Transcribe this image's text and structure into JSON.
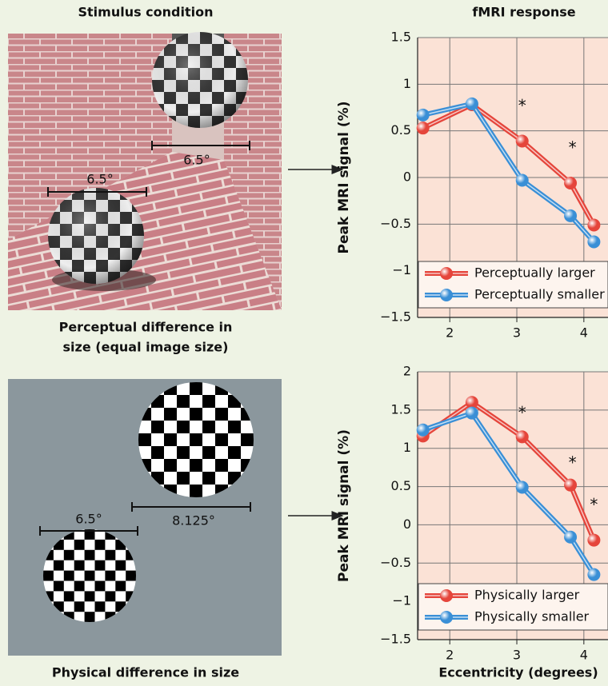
{
  "titles": {
    "left": "Stimulus condition",
    "right": "fMRI response"
  },
  "stimuli": [
    {
      "caption": [
        "Perceptual difference in",
        "size (equal image size)"
      ],
      "dims": [
        "6.5°",
        "6.5°"
      ]
    },
    {
      "caption": [
        "Physical difference in size"
      ],
      "dims": [
        "6.5°",
        "8.125°"
      ]
    }
  ],
  "chart_data": [
    {
      "type": "line",
      "ylabel": "Peak MRI signal (%)",
      "x": [
        1.6,
        2.33,
        3.08,
        3.8,
        4.15
      ],
      "series": [
        {
          "name": "Perceptually larger",
          "color": "#e5453b",
          "values": [
            0.53,
            0.78,
            0.39,
            -0.06,
            -0.51
          ]
        },
        {
          "name": "Perceptually smaller",
          "color": "#3a8fd6",
          "values": [
            0.67,
            0.79,
            -0.03,
            -0.41,
            -0.69
          ]
        }
      ],
      "annotations": [
        {
          "text": "*",
          "x": 3.08,
          "y": 0.76
        },
        {
          "text": "*",
          "x": 3.83,
          "y": 0.31
        }
      ],
      "xlim": [
        1.52,
        4.36
      ],
      "xticks": [
        2,
        3,
        4
      ],
      "ylim": [
        -1.5,
        1.5
      ],
      "yticks": [
        {
          "value": -1.5,
          "label": "−1.5"
        },
        {
          "value": -1,
          "label": "−1"
        },
        {
          "value": -0.5,
          "label": "−0.5"
        },
        0,
        0.5,
        1,
        1.5
      ],
      "grid": true,
      "legend": "lower right"
    },
    {
      "type": "line",
      "ylabel": "Peak MRI signal (%)",
      "xlabel": "Eccentricity (degrees)",
      "x": [
        1.6,
        2.33,
        3.08,
        3.8,
        4.15
      ],
      "series": [
        {
          "name": "Physically larger",
          "color": "#e5453b",
          "values": [
            1.16,
            1.6,
            1.15,
            0.52,
            -0.2
          ]
        },
        {
          "name": "Physically smaller",
          "color": "#3a8fd6",
          "values": [
            1.24,
            1.46,
            0.49,
            -0.16,
            -0.65
          ]
        }
      ],
      "annotations": [
        {
          "text": "*",
          "x": 3.08,
          "y": 1.45
        },
        {
          "text": "*",
          "x": 3.83,
          "y": 0.8
        },
        {
          "text": "*",
          "x": 4.15,
          "y": 0.25
        }
      ],
      "xlim": [
        1.52,
        4.36
      ],
      "xticks": [
        2,
        3,
        4
      ],
      "ylim": [
        -1.5,
        2
      ],
      "yticks": [
        {
          "value": -1.5,
          "label": "−1.5"
        },
        {
          "value": -1,
          "label": "−1"
        },
        {
          "value": -0.5,
          "label": "−0.5"
        },
        0,
        0.5,
        1,
        1.5,
        2
      ],
      "grid": true,
      "legend": "lower right"
    }
  ]
}
